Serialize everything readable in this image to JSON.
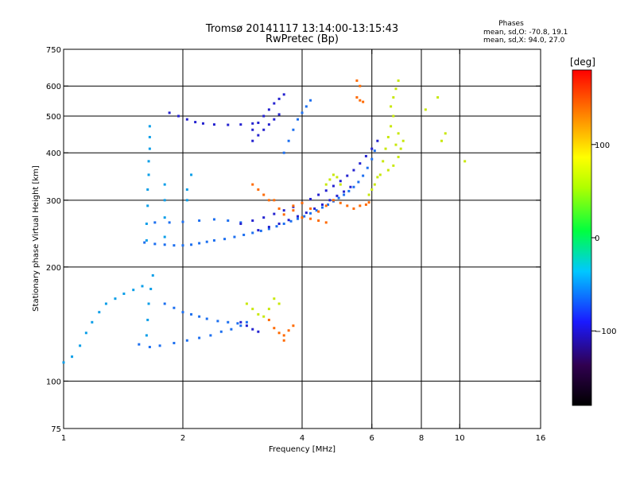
{
  "chart_data": {
    "type": "scatter",
    "title": "Tromsø 20141117 13:14:00-13:15:43",
    "subtitle": "RwPretec (Bp)",
    "xlabel": "Frequency [MHz]",
    "ylabel": "Stationary phase Virtual Height [km]",
    "x_scale": "log",
    "y_scale": "log",
    "xlim": [
      1,
      16
    ],
    "ylim": [
      75,
      750
    ],
    "x_ticks": [
      1,
      2,
      4,
      6,
      8,
      10,
      16
    ],
    "y_ticks": [
      75,
      100,
      200,
      300,
      400,
      500,
      600,
      750
    ],
    "x_grid": [
      2,
      4,
      6,
      8,
      10
    ],
    "y_grid": [
      100,
      200,
      300,
      400,
      500,
      600
    ],
    "grid": true,
    "phase_box": {
      "title": "Phases",
      "line1": "mean, sd,O: -70.8, 19.1",
      "line2": "mean, sd,X:  94.0, 27.0"
    },
    "colorbar": {
      "label": "[deg]",
      "range": [
        -180,
        180
      ],
      "ticks": [
        100,
        0,
        -100
      ],
      "tick_labels": [
        "100",
        "0",
        "−100"
      ]
    },
    "series": [
      {
        "values": [
          [
            1.0,
            112
          ],
          [
            1.05,
            116
          ],
          [
            1.1,
            124
          ],
          [
            1.14,
            134
          ],
          [
            1.18,
            143
          ],
          [
            1.23,
            152
          ],
          [
            1.28,
            160
          ],
          [
            1.35,
            165
          ],
          [
            1.42,
            170
          ],
          [
            1.5,
            174
          ],
          [
            1.58,
            178
          ],
          [
            1.62,
            235
          ],
          [
            1.62,
            260
          ],
          [
            1.63,
            290
          ],
          [
            1.63,
            320
          ],
          [
            1.64,
            350
          ],
          [
            1.64,
            380
          ],
          [
            1.65,
            410
          ],
          [
            1.65,
            440
          ],
          [
            1.65,
            470
          ],
          [
            1.68,
            190
          ],
          [
            1.66,
            175
          ],
          [
            1.64,
            160
          ],
          [
            1.63,
            145
          ],
          [
            1.62,
            132
          ],
          [
            1.8,
            240
          ],
          [
            1.8,
            270
          ],
          [
            1.8,
            300
          ],
          [
            1.8,
            330
          ],
          [
            2.05,
            300
          ],
          [
            2.05,
            320
          ],
          [
            2.1,
            350
          ]
        ]
      },
      {
        "values": [
          [
            1.6,
            232
          ],
          [
            1.7,
            230
          ],
          [
            1.8,
            229
          ],
          [
            1.9,
            228
          ],
          [
            2.0,
            228
          ],
          [
            2.1,
            229
          ],
          [
            2.2,
            231
          ],
          [
            2.3,
            233
          ],
          [
            2.4,
            235
          ],
          [
            2.55,
            237
          ],
          [
            2.7,
            240
          ],
          [
            2.85,
            243
          ],
          [
            3.0,
            246
          ],
          [
            3.15,
            249
          ],
          [
            3.3,
            252
          ],
          [
            3.45,
            256
          ],
          [
            3.6,
            260
          ],
          [
            3.75,
            264
          ],
          [
            3.9,
            268
          ],
          [
            4.05,
            272
          ],
          [
            4.2,
            277
          ],
          [
            4.35,
            282
          ],
          [
            4.5,
            287
          ],
          [
            4.65,
            292
          ],
          [
            4.8,
            298
          ],
          [
            4.95,
            304
          ],
          [
            5.1,
            310
          ],
          [
            5.25,
            317
          ],
          [
            5.4,
            325
          ],
          [
            5.55,
            335
          ],
          [
            5.7,
            348
          ],
          [
            5.85,
            365
          ],
          [
            6.0,
            385
          ],
          [
            6.1,
            405
          ],
          [
            1.7,
            262
          ],
          [
            1.85,
            262
          ],
          [
            2.0,
            263
          ],
          [
            2.2,
            265
          ],
          [
            2.4,
            267
          ],
          [
            2.6,
            265
          ],
          [
            2.8,
            262
          ],
          [
            1.55,
            125
          ],
          [
            1.65,
            123
          ],
          [
            1.75,
            124
          ],
          [
            1.9,
            126
          ],
          [
            2.05,
            128
          ],
          [
            2.2,
            130
          ],
          [
            2.35,
            132
          ],
          [
            2.5,
            135
          ],
          [
            2.65,
            137
          ],
          [
            2.8,
            140
          ],
          [
            1.8,
            160
          ],
          [
            1.9,
            156
          ],
          [
            2.0,
            152
          ],
          [
            2.1,
            150
          ],
          [
            2.2,
            148
          ],
          [
            2.3,
            146
          ],
          [
            2.45,
            144
          ],
          [
            2.6,
            143
          ],
          [
            2.75,
            142
          ],
          [
            2.9,
            143
          ],
          [
            3.6,
            400
          ],
          [
            3.7,
            430
          ],
          [
            3.8,
            460
          ],
          [
            3.9,
            490
          ],
          [
            4.0,
            510
          ],
          [
            4.1,
            530
          ],
          [
            4.2,
            550
          ]
        ]
      },
      {
        "values": [
          [
            1.85,
            510
          ],
          [
            1.95,
            500
          ],
          [
            2.05,
            490
          ],
          [
            2.15,
            482
          ],
          [
            2.25,
            478
          ],
          [
            2.4,
            475
          ],
          [
            2.6,
            474
          ],
          [
            2.8,
            475
          ],
          [
            3.0,
            478
          ],
          [
            3.0,
            460
          ],
          [
            3.1,
            480
          ],
          [
            3.2,
            500
          ],
          [
            3.3,
            520
          ],
          [
            3.4,
            540
          ],
          [
            3.5,
            555
          ],
          [
            3.6,
            570
          ],
          [
            3.0,
            430
          ],
          [
            3.1,
            445
          ],
          [
            3.2,
            460
          ],
          [
            3.3,
            475
          ],
          [
            3.4,
            490
          ],
          [
            3.5,
            505
          ],
          [
            2.8,
            260
          ],
          [
            3.0,
            265
          ],
          [
            3.2,
            270
          ],
          [
            3.4,
            276
          ],
          [
            3.6,
            282
          ],
          [
            3.8,
            288
          ],
          [
            4.0,
            295
          ],
          [
            4.2,
            302
          ],
          [
            4.4,
            310
          ],
          [
            4.6,
            318
          ],
          [
            4.8,
            327
          ],
          [
            5.0,
            337
          ],
          [
            5.2,
            348
          ],
          [
            5.4,
            360
          ],
          [
            5.6,
            375
          ],
          [
            5.8,
            392
          ],
          [
            6.0,
            410
          ],
          [
            6.2,
            430
          ],
          [
            3.1,
            250
          ],
          [
            3.3,
            255
          ],
          [
            3.5,
            260
          ],
          [
            3.7,
            266
          ],
          [
            3.9,
            272
          ],
          [
            4.1,
            278
          ],
          [
            4.3,
            285
          ],
          [
            4.5,
            292
          ],
          [
            4.7,
            300
          ],
          [
            4.9,
            308
          ],
          [
            5.1,
            316
          ],
          [
            5.3,
            325
          ],
          [
            2.8,
            143
          ],
          [
            2.9,
            140
          ],
          [
            3.0,
            137
          ],
          [
            3.1,
            135
          ]
        ]
      },
      {
        "values": [
          [
            3.8,
            290
          ],
          [
            4.0,
            295
          ],
          [
            4.2,
            285
          ],
          [
            4.4,
            280
          ],
          [
            4.6,
            290
          ],
          [
            4.8,
            300
          ],
          [
            5.0,
            295
          ],
          [
            5.2,
            290
          ],
          [
            5.4,
            285
          ],
          [
            5.6,
            290
          ],
          [
            5.8,
            292
          ],
          [
            5.9,
            296
          ],
          [
            3.4,
            300
          ],
          [
            3.5,
            285
          ],
          [
            3.6,
            275
          ],
          [
            3.8,
            282
          ],
          [
            4.0,
            270
          ],
          [
            4.2,
            268
          ],
          [
            4.4,
            265
          ],
          [
            4.6,
            262
          ],
          [
            3.0,
            330
          ],
          [
            3.1,
            320
          ],
          [
            3.2,
            310
          ],
          [
            3.3,
            300
          ],
          [
            3.3,
            145
          ],
          [
            3.4,
            138
          ],
          [
            3.5,
            134
          ],
          [
            3.6,
            132
          ],
          [
            3.7,
            136
          ],
          [
            3.8,
            140
          ],
          [
            3.6,
            128
          ],
          [
            5.5,
            560
          ],
          [
            5.6,
            550
          ],
          [
            5.7,
            545
          ],
          [
            5.5,
            620
          ],
          [
            5.6,
            600
          ]
        ]
      },
      {
        "values": [
          [
            2.9,
            160
          ],
          [
            3.0,
            155
          ],
          [
            3.1,
            150
          ],
          [
            3.2,
            148
          ],
          [
            3.3,
            155
          ],
          [
            3.4,
            165
          ],
          [
            3.5,
            160
          ],
          [
            4.6,
            330
          ],
          [
            4.7,
            340
          ],
          [
            4.8,
            350
          ],
          [
            4.9,
            345
          ],
          [
            5.0,
            330
          ],
          [
            5.9,
            310
          ],
          [
            6.0,
            320
          ],
          [
            6.1,
            330
          ],
          [
            6.2,
            345
          ],
          [
            6.3,
            350
          ],
          [
            6.4,
            380
          ],
          [
            6.5,
            410
          ],
          [
            6.6,
            440
          ],
          [
            6.7,
            470
          ],
          [
            6.8,
            500
          ],
          [
            6.7,
            530
          ],
          [
            6.8,
            560
          ],
          [
            6.9,
            590
          ],
          [
            7.0,
            620
          ],
          [
            6.6,
            360
          ],
          [
            6.8,
            370
          ],
          [
            7.0,
            390
          ],
          [
            7.1,
            410
          ],
          [
            7.2,
            430
          ],
          [
            6.9,
            420
          ],
          [
            7.0,
            450
          ],
          [
            8.2,
            520
          ],
          [
            9.2,
            450
          ],
          [
            10.3,
            380
          ],
          [
            8.8,
            560
          ],
          [
            9.0,
            430
          ]
        ]
      }
    ],
    "series_colors": [
      "#0a9ee8",
      "#1c6ff0",
      "#2422d0",
      "#ff6a00",
      "#c8e80a"
    ]
  }
}
